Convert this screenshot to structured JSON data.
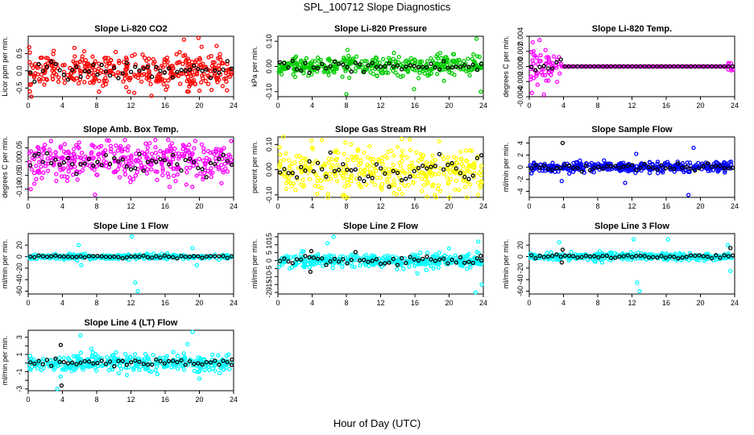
{
  "figure": {
    "title": "SPL_100712  Slope Diagnostics",
    "xlabel": "Hour of Day (UTC)"
  },
  "chart_data": [
    {
      "type": "scatter",
      "title": "Slope Li-820 CO2",
      "ylabel": "Licor ppm per min.",
      "color": "#ff0000",
      "xlim": [
        0,
        24
      ],
      "xticks": [
        0,
        4,
        8,
        12,
        16,
        20,
        24
      ],
      "ylim": [
        -0.75,
        1.0
      ],
      "yticks": [
        -0.5,
        0.0,
        0.5
      ],
      "ytick_labels": [
        "-0.5",
        "0.0",
        "0.5"
      ],
      "noise": 0.25,
      "outliers": [
        [
          18.2,
          0.9
        ],
        [
          19.9,
          0.95
        ],
        [
          0.2,
          -0.6
        ],
        [
          16.1,
          -0.55
        ],
        [
          18.6,
          -0.6
        ]
      ],
      "black_noise": 0.12
    },
    {
      "type": "scatter",
      "title": "Slope Li-820 Pressure",
      "ylabel": "kPa per min.",
      "color": "#00cc00",
      "xlim": [
        0,
        24
      ],
      "xticks": [
        0,
        4,
        8,
        12,
        16,
        20,
        24
      ],
      "ylim": [
        -0.12,
        0.12
      ],
      "yticks": [
        -0.1,
        0.0,
        0.1
      ],
      "ytick_labels": [
        "-0.10",
        "0.00",
        "0.10"
      ],
      "noise": 0.02,
      "outliers": [
        [
          8.0,
          -0.11
        ],
        [
          15.9,
          -0.09
        ],
        [
          23.7,
          -0.1
        ],
        [
          23.2,
          0.11
        ]
      ],
      "black_noise": 0.012
    },
    {
      "type": "scatter",
      "title": "Slope Li-820 Temp.",
      "ylabel": "degrees C per min.",
      "color": "#ff00ff",
      "xlim": [
        0,
        24
      ],
      "xticks": [
        0,
        4,
        8,
        12,
        16,
        20,
        24
      ],
      "ylim": [
        -0.004,
        0.004
      ],
      "yticks": [
        -0.004,
        -0.002,
        0.0,
        0.002,
        0.004
      ],
      "ytick_labels": [
        "-0.004",
        "-0.002",
        "0.000",
        "0.002",
        "0.004"
      ],
      "noise": 0.0,
      "early_noise": 0.0015,
      "outliers": [
        [
          0.3,
          -0.0035
        ],
        [
          1.2,
          0.0035
        ]
      ],
      "black_noise": 0.0
    },
    {
      "type": "scatter",
      "title": "Slope Amb. Box Temp.",
      "ylabel": "degrees C per min.",
      "color": "#ff00ff",
      "xlim": [
        0,
        24
      ],
      "xticks": [
        0,
        4,
        8,
        12,
        16,
        20,
        24
      ],
      "ylim": [
        -0.13,
        0.09
      ],
      "yticks": [
        -0.1,
        -0.05,
        0.0,
        0.05
      ],
      "ytick_labels": [
        "-0.10",
        "-0.05",
        "0.00",
        "0.05"
      ],
      "noise": 0.035,
      "outliers": [
        [
          7.8,
          -0.12
        ],
        [
          0.3,
          -0.1
        ]
      ],
      "black_noise": 0.02
    },
    {
      "type": "scatter",
      "title": "Slope Gas Stream RH",
      "ylabel": "percent per min.",
      "color": "#ffff00",
      "xlim": [
        0,
        24
      ],
      "xticks": [
        0,
        4,
        8,
        12,
        16,
        20,
        24
      ],
      "ylim": [
        -0.11,
        0.13
      ],
      "yticks": [
        -0.1,
        0.0,
        0.1
      ],
      "ytick_labels": [
        "-0.10",
        "0.00",
        "0.10"
      ],
      "noise": 0.045,
      "outliers": [
        [
          15.4,
          0.12
        ],
        [
          23.4,
          -0.1
        ]
      ],
      "black_noise": 0.03
    },
    {
      "type": "scatter",
      "title": "Slope Sample Flow",
      "ylabel": "ml/min per min.",
      "color": "#0000ff",
      "xlim": [
        0,
        24
      ],
      "xticks": [
        0,
        4,
        8,
        12,
        16,
        20,
        24
      ],
      "ylim": [
        -5,
        5
      ],
      "yticks": [
        -4,
        -2,
        0,
        2,
        4
      ],
      "ytick_labels": [
        "-4",
        "-2",
        "0",
        "2",
        "4"
      ],
      "noise": 0.4,
      "outliers": [
        [
          19.2,
          3.2
        ],
        [
          18.6,
          -4.6
        ],
        [
          12.5,
          2.2
        ],
        [
          3.8,
          -2.3
        ],
        [
          11.2,
          -2.6
        ]
      ],
      "black_noise": 0.3,
      "black_outliers": [
        [
          3.9,
          4.0
        ]
      ]
    },
    {
      "type": "scatter",
      "title": "Slope Line 1 Flow",
      "ylabel": "ml/min per min.",
      "color": "#00ffff",
      "xlim": [
        0,
        24
      ],
      "xticks": [
        0,
        4,
        8,
        12,
        16,
        20,
        24
      ],
      "ylim": [
        -65,
        40
      ],
      "yticks": [
        -60,
        -40,
        -20,
        0,
        20
      ],
      "ytick_labels": [
        "-60",
        "-40",
        "-20",
        "0",
        "20"
      ],
      "noise": 2,
      "outliers": [
        [
          12.8,
          -60
        ],
        [
          12.5,
          -45
        ],
        [
          12.1,
          35
        ],
        [
          5.9,
          20
        ],
        [
          6.2,
          -15
        ],
        [
          19.7,
          -15
        ],
        [
          19.2,
          15
        ]
      ],
      "black_noise": 1
    },
    {
      "type": "scatter",
      "title": "Slope Line 2 Flow",
      "ylabel": "ml/min per min.",
      "color": "#00ffff",
      "xlim": [
        0,
        24
      ],
      "xticks": [
        0,
        4,
        8,
        12,
        16,
        20,
        24
      ],
      "ylim": [
        -21,
        17
      ],
      "yticks": [
        -20,
        -15,
        -10,
        -5,
        0,
        5,
        10,
        15
      ],
      "ytick_labels": [
        "-20",
        "-15",
        "-10",
        "-5",
        "0",
        "5",
        "10",
        "15"
      ],
      "noise": 2,
      "outliers": [
        [
          6.5,
          15
        ],
        [
          5.8,
          11
        ],
        [
          23.4,
          12
        ],
        [
          23.8,
          -15
        ],
        [
          23.1,
          -20
        ],
        [
          16.3,
          -8
        ]
      ],
      "black_noise": 1.5,
      "black_outliers": [
        [
          3.8,
          -7
        ],
        [
          3.9,
          6
        ],
        [
          23.7,
          3
        ]
      ]
    },
    {
      "type": "scatter",
      "title": "Slope Line 3 Flow",
      "ylabel": "ml/min per min.",
      "color": "#00ffff",
      "xlim": [
        0,
        24
      ],
      "xticks": [
        0,
        4,
        8,
        12,
        16,
        20,
        24
      ],
      "ylim": [
        -65,
        40
      ],
      "yticks": [
        -60,
        -40,
        -20,
        0,
        20
      ],
      "ytick_labels": [
        "-60",
        "-40",
        "-20",
        "0",
        "20"
      ],
      "noise": 3,
      "outliers": [
        [
          12.9,
          -60
        ],
        [
          12.6,
          -45
        ],
        [
          12.2,
          30
        ],
        [
          16.2,
          30
        ],
        [
          3.5,
          25
        ],
        [
          23.2,
          20
        ],
        [
          23.5,
          -25
        ]
      ],
      "black_noise": 1.5,
      "black_outliers": [
        [
          3.9,
          12
        ],
        [
          3.8,
          -10
        ],
        [
          23.5,
          15
        ]
      ]
    },
    {
      "type": "scatter",
      "title": "Slope Line 4 (LT) Flow",
      "ylabel": "ml/min per min.",
      "color": "#00ffff",
      "xlim": [
        0,
        24
      ],
      "xticks": [
        0,
        4,
        8,
        12,
        16,
        20,
        24
      ],
      "ylim": [
        -3.2,
        3.8
      ],
      "yticks": [
        -3,
        -2,
        -1,
        0,
        1,
        2,
        3
      ],
      "ytick_labels": [
        "-3",
        "-1",
        "1",
        "3"
      ],
      "ytick_values": [
        -3,
        -1,
        1,
        3
      ],
      "noise": 0.5,
      "outliers": [
        [
          19.2,
          3.6
        ],
        [
          18.6,
          2.2
        ],
        [
          6.1,
          3.2
        ],
        [
          3.4,
          -3.0
        ],
        [
          20.0,
          -1.8
        ]
      ],
      "black_noise": 0.25,
      "black_outliers": [
        [
          3.8,
          2.1
        ],
        [
          3.9,
          -2.6
        ],
        [
          23.8,
          0.4
        ]
      ]
    }
  ]
}
